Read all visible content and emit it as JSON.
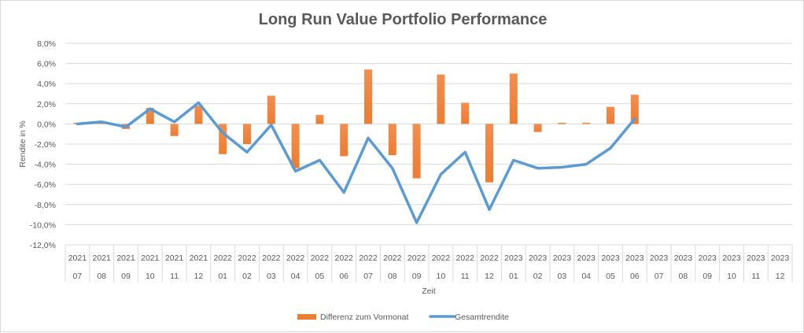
{
  "chart_data": {
    "type": "bar+line",
    "title": "Long Run Value Portfolio Performance",
    "xlabel": "Zeit",
    "ylabel": "Rendite in %",
    "ylim": [
      -12,
      8
    ],
    "ytick_step": 2,
    "ytick_labels": [
      "8,0%",
      "6,0%",
      "4,0%",
      "2,0%",
      "0,0%",
      "-2,0%",
      "-4,0%",
      "-6,0%",
      "-8,0%",
      "-10,0%",
      "-12,0%"
    ],
    "grid": true,
    "legend_position": "bottom",
    "categories": [
      {
        "year": "2021",
        "month": "07"
      },
      {
        "year": "2021",
        "month": "08"
      },
      {
        "year": "2021",
        "month": "09"
      },
      {
        "year": "2021",
        "month": "10"
      },
      {
        "year": "2021",
        "month": "11"
      },
      {
        "year": "2021",
        "month": "12"
      },
      {
        "year": "2022",
        "month": "01"
      },
      {
        "year": "2022",
        "month": "02"
      },
      {
        "year": "2022",
        "month": "03"
      },
      {
        "year": "2022",
        "month": "04"
      },
      {
        "year": "2022",
        "month": "05"
      },
      {
        "year": "2022",
        "month": "06"
      },
      {
        "year": "2022",
        "month": "07"
      },
      {
        "year": "2022",
        "month": "08"
      },
      {
        "year": "2022",
        "month": "09"
      },
      {
        "year": "2022",
        "month": "10"
      },
      {
        "year": "2022",
        "month": "11"
      },
      {
        "year": "2022",
        "month": "12"
      },
      {
        "year": "2023",
        "month": "01"
      },
      {
        "year": "2023",
        "month": "02"
      },
      {
        "year": "2023",
        "month": "03"
      },
      {
        "year": "2023",
        "month": "04"
      },
      {
        "year": "2023",
        "month": "05"
      },
      {
        "year": "2023",
        "month": "06"
      },
      {
        "year": "2023",
        "month": "07"
      },
      {
        "year": "2023",
        "month": "08"
      },
      {
        "year": "2023",
        "month": "09"
      },
      {
        "year": "2023",
        "month": "10"
      },
      {
        "year": "2023",
        "month": "11"
      },
      {
        "year": "2023",
        "month": "12"
      }
    ],
    "series": [
      {
        "name": "Differenz zum Vormonat",
        "type": "bar",
        "color": "#ed7d31",
        "values": [
          0.0,
          0.2,
          -0.5,
          1.6,
          -1.2,
          1.8,
          -3.0,
          -2.0,
          2.8,
          -4.4,
          0.9,
          -3.2,
          5.4,
          -3.1,
          -5.4,
          4.9,
          2.1,
          -5.8,
          5.0,
          -0.8,
          0.1,
          0.1,
          1.7,
          2.9,
          null,
          null,
          null,
          null,
          null,
          null
        ]
      },
      {
        "name": "Gesamtrendite",
        "type": "line",
        "color": "#5b9bd5",
        "values": [
          0.0,
          0.2,
          -0.3,
          1.5,
          0.2,
          2.1,
          -0.9,
          -2.8,
          -0.1,
          -4.7,
          -3.6,
          -6.8,
          -1.4,
          -4.4,
          -9.8,
          -5.0,
          -2.8,
          -8.5,
          -3.6,
          -4.4,
          -4.3,
          -4.0,
          -2.4,
          0.5,
          null,
          null,
          null,
          null,
          null,
          null
        ]
      }
    ]
  }
}
